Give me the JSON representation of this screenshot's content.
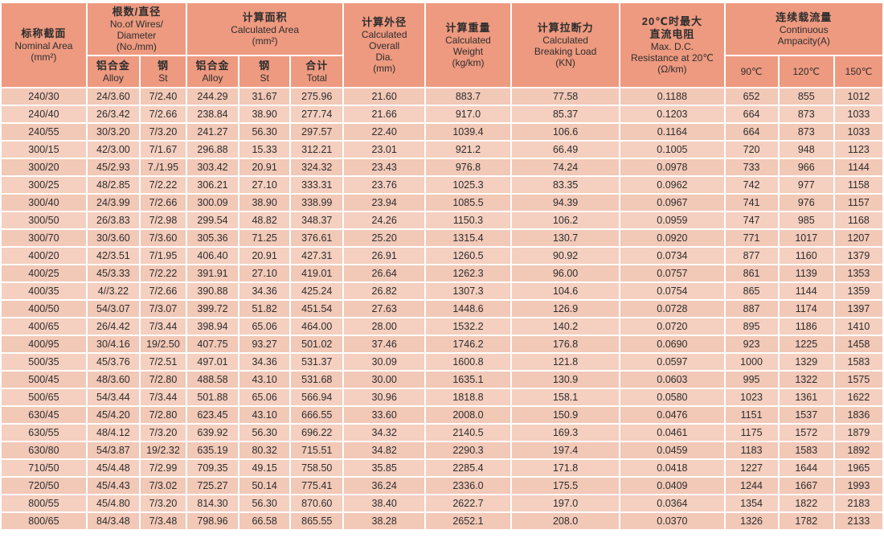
{
  "colors": {
    "header_bg": "#ee9a80",
    "row_bg": "#f5cfbf",
    "row_alt_bg": "#f2c8b7",
    "grid": "#ffffff",
    "text": "#2d2d2d"
  },
  "table": {
    "header": {
      "nominal": {
        "zh": "标称截面",
        "en": "Nominal Area",
        "unit": "(mm²)"
      },
      "wires": {
        "zh": "根数/直径",
        "en1": "No.of Wires/",
        "en2": "Diameter",
        "unit": "(No./mm)"
      },
      "area": {
        "zh": "计算面积",
        "en": "Calculated Area",
        "unit": "(mm²)"
      },
      "sub_alloy": {
        "zh": "铝合金",
        "en": "Alloy"
      },
      "sub_st": {
        "zh": "钢",
        "en": "St"
      },
      "sub_total": {
        "zh": "合计",
        "en": "Total"
      },
      "dia": {
        "zh": "计算外径",
        "en1": "Calculated",
        "en2": "Overall",
        "en3": "Dia.",
        "unit": "(mm)"
      },
      "weight": {
        "zh": "计算重量",
        "en1": "Calculated",
        "en2": "Weight",
        "unit": "(kg/km)"
      },
      "load": {
        "zh": "计算拉断力",
        "en1": "Calculated",
        "en2": "Breaking Load",
        "unit": "(KN)"
      },
      "resistance": {
        "zh1": "20℃时最大",
        "zh2": "直流电阻",
        "en1": "Max. D.C.",
        "en2": "Resistance at 20℃",
        "unit": "(Ω/km)"
      },
      "ampacity": {
        "zh": "连续载流量",
        "en1": "Continuous",
        "en2": "Ampacity(A)"
      },
      "t90": "90℃",
      "t120": "120℃",
      "t150": "150℃"
    },
    "col_keys": [
      "nominal_area",
      "wires_alloy",
      "wires_st",
      "area_alloy",
      "area_st",
      "area_total",
      "overall_dia",
      "weight",
      "breaking_load",
      "dc_resistance",
      "amp_90c",
      "amp_120c",
      "amp_150c"
    ],
    "rows": [
      [
        "240/30",
        "24/3.60",
        "7/2.40",
        "244.29",
        "31.67",
        "275.96",
        "21.60",
        "883.7",
        "77.58",
        "0.1188",
        "652",
        "855",
        "1012"
      ],
      [
        "240/40",
        "26/3.42",
        "7/2.66",
        "238.84",
        "38.90",
        "277.74",
        "21.66",
        "917.0",
        "85.37",
        "0.1203",
        "664",
        "873",
        "1033"
      ],
      [
        "240/55",
        "30/3.20",
        "7/3.20",
        "241.27",
        "56.30",
        "297.57",
        "22.40",
        "1039.4",
        "106.6",
        "0.1164",
        "664",
        "873",
        "1033"
      ],
      [
        "300/15",
        "42/3.00",
        "7/1.67",
        "296.88",
        "15.33",
        "312.21",
        "23.01",
        "921.2",
        "66.49",
        "0.1005",
        "720",
        "948",
        "1123"
      ],
      [
        "300/20",
        "45/2.93",
        "7./1.95",
        "303.42",
        "20.91",
        "324.32",
        "23.43",
        "976.8",
        "74.24",
        "0.0978",
        "733",
        "966",
        "1144"
      ],
      [
        "300/25",
        "48/2.85",
        "7/2.22",
        "306.21",
        "27.10",
        "333.31",
        "23.76",
        "1025.3",
        "83.35",
        "0.0962",
        "742",
        "977",
        "1158"
      ],
      [
        "300/40",
        "24/3.99",
        "7/2.66",
        "300.09",
        "38.90",
        "338.99",
        "23.94",
        "1085.5",
        "94.39",
        "0.0967",
        "741",
        "976",
        "1157"
      ],
      [
        "300/50",
        "26/3.83",
        "7/2.98",
        "299.54",
        "48.82",
        "348.37",
        "24.26",
        "1150.3",
        "106.2",
        "0.0959",
        "747",
        "985",
        "1168"
      ],
      [
        "300/70",
        "30/3.60",
        "7/3.60",
        "305.36",
        "71.25",
        "376.61",
        "25.20",
        "1315.4",
        "130.7",
        "0.0920",
        "771",
        "1017",
        "1207"
      ],
      [
        "400/20",
        "42/3.51",
        "7/1.95",
        "406.40",
        "20.91",
        "427.31",
        "26.91",
        "1260.5",
        "90.92",
        "0.0734",
        "877",
        "1160",
        "1379"
      ],
      [
        "400/25",
        "45/3.33",
        "7/2.22",
        "391.91",
        "27.10",
        "419.01",
        "26.64",
        "1262.3",
        "96.00",
        "0.0757",
        "861",
        "1139",
        "1353"
      ],
      [
        "400/35",
        "4//3.22",
        "7/2.66",
        "390.88",
        "34.36",
        "425.24",
        "26.82",
        "1307.3",
        "104.6",
        "0.0754",
        "865",
        "1144",
        "1359"
      ],
      [
        "400/50",
        "54/3.07",
        "7/3.07",
        "399.72",
        "51.82",
        "451.54",
        "27.63",
        "1448.6",
        "126.9",
        "0.0728",
        "887",
        "1174",
        "1397"
      ],
      [
        "400/65",
        "26/4.42",
        "7/3.44",
        "398.94",
        "65.06",
        "464.00",
        "28.00",
        "1532.2",
        "140.2",
        "0.0720",
        "895",
        "1186",
        "1410"
      ],
      [
        "400/95",
        "30/4.16",
        "19/2.50",
        "407.75",
        "93.27",
        "501.02",
        "37.46",
        "1746.2",
        "176.8",
        "0.0690",
        "923",
        "1225",
        "1458"
      ],
      [
        "500/35",
        "45/3.76",
        "7/2.51",
        "497.01",
        "34.36",
        "531.37",
        "30.09",
        "1600.8",
        "121.8",
        "0.0597",
        "1000",
        "1329",
        "1583"
      ],
      [
        "500/45",
        "48/3.60",
        "7/2.80",
        "488.58",
        "43.10",
        "531.68",
        "30.00",
        "1635.1",
        "130.9",
        "0.0603",
        "995",
        "1322",
        "1575"
      ],
      [
        "500/65",
        "54/3.44",
        "7/3.44",
        "501.88",
        "65.06",
        "566.94",
        "30.96",
        "1818.8",
        "158.1",
        "0.0580",
        "1023",
        "1361",
        "1622"
      ],
      [
        "630/45",
        "45/4.20",
        "7/2.80",
        "623.45",
        "43.10",
        "666.55",
        "33.60",
        "2008.0",
        "150.9",
        "0.0476",
        "1151",
        "1537",
        "1836"
      ],
      [
        "630/55",
        "48/4.12",
        "7/3.20",
        "639.92",
        "56.30",
        "696.22",
        "34.32",
        "2140.5",
        "169.3",
        "0.0461",
        "1175",
        "1572",
        "1879"
      ],
      [
        "630/80",
        "54/3.87",
        "19/2.32",
        "635.19",
        "80.32",
        "715.51",
        "34.82",
        "2290.3",
        "197.4",
        "0.0459",
        "1183",
        "1583",
        "1892"
      ],
      [
        "710/50",
        "45/4.48",
        "7/2.99",
        "709.35",
        "49.15",
        "758.50",
        "35.85",
        "2285.4",
        "171.8",
        "0.0418",
        "1227",
        "1644",
        "1965"
      ],
      [
        "720/50",
        "45/4.43",
        "7/3.02",
        "725.27",
        "50.14",
        "775.41",
        "36.24",
        "2336.0",
        "175.5",
        "0.0409",
        "1244",
        "1667",
        "1993"
      ],
      [
        "800/55",
        "45/4.80",
        "7/3.20",
        "814.30",
        "56.30",
        "870.60",
        "38.40",
        "2622.7",
        "197.0",
        "0.0364",
        "1354",
        "1822",
        "2183"
      ],
      [
        "800/65",
        "84/3.48",
        "7/3.48",
        "798.96",
        "66.58",
        "865.55",
        "38.28",
        "2652.1",
        "208.0",
        "0.0370",
        "1326",
        "1782",
        "2133"
      ]
    ]
  }
}
